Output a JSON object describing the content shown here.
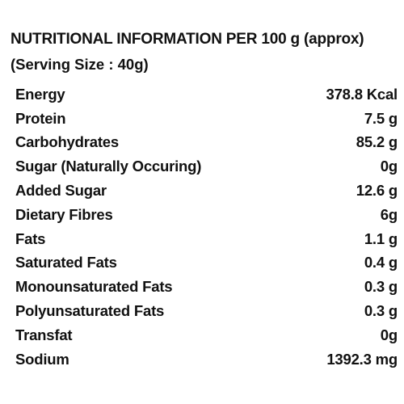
{
  "heading": {
    "title": "NUTRITIONAL INFORMATION PER 100 g (approx)",
    "serving": "(Serving Size : 40g)"
  },
  "nutrients": [
    {
      "label": "Energy",
      "value": "378.8 Kcal"
    },
    {
      "label": "Protein",
      "value": "7.5 g"
    },
    {
      "label": "Carbohydrates",
      "value": "85.2 g"
    },
    {
      "label": "Sugar (Naturally Occuring)",
      "value": "0g"
    },
    {
      "label": "Added Sugar",
      "value": "12.6 g"
    },
    {
      "label": "Dietary Fibres",
      "value": "6g"
    },
    {
      "label": "Fats",
      "value": "1.1 g"
    },
    {
      "label": "Saturated Fats",
      "value": "0.4 g"
    },
    {
      "label": "Monounsaturated Fats",
      "value": "0.3 g"
    },
    {
      "label": "Polyunsaturated Fats",
      "value": "0.3 g"
    },
    {
      "label": "Transfat",
      "value": "0g"
    },
    {
      "label": "Sodium",
      "value": "1392.3 mg"
    }
  ]
}
